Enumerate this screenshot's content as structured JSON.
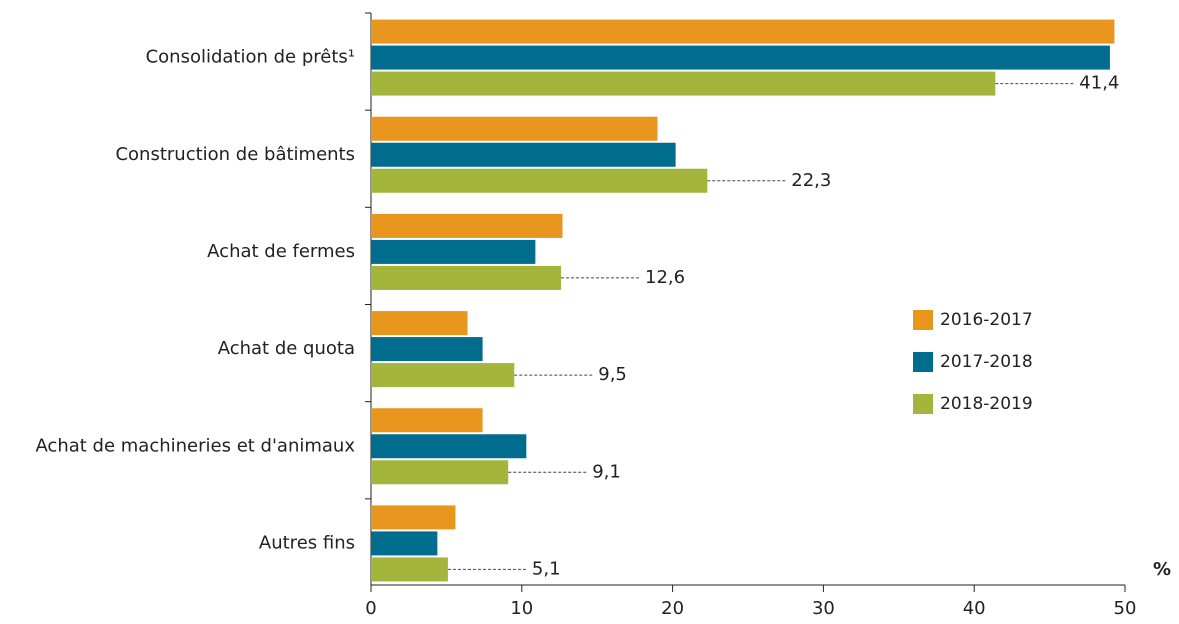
{
  "chart_data": {
    "type": "bar",
    "orientation": "horizontal",
    "x_label": "%",
    "categories": [
      "Consolidation de prêts¹",
      "Construction de bâtiments",
      "Achat de fermes",
      "Achat de quota",
      "Achat de machineries et d'animaux",
      "Autres fins"
    ],
    "series": [
      {
        "name": "2016-2017",
        "color": "#e8961e",
        "values": [
          49.3,
          19.0,
          12.7,
          6.4,
          7.4,
          5.6
        ]
      },
      {
        "name": "2017-2018",
        "color": "#006d8f",
        "values": [
          49.0,
          20.2,
          10.9,
          7.4,
          10.3,
          4.4
        ]
      },
      {
        "name": "2018-2019",
        "color": "#a3b53a",
        "values": [
          41.4,
          22.3,
          12.6,
          9.5,
          9.1,
          5.1
        ],
        "value_labels": [
          "41,4",
          "22,3",
          "12,6",
          "9,5",
          "9,1",
          "5,1"
        ]
      }
    ],
    "xlim": [
      0,
      50
    ],
    "xticks": [
      0,
      10,
      20,
      30,
      40,
      50
    ],
    "legend": "right"
  }
}
